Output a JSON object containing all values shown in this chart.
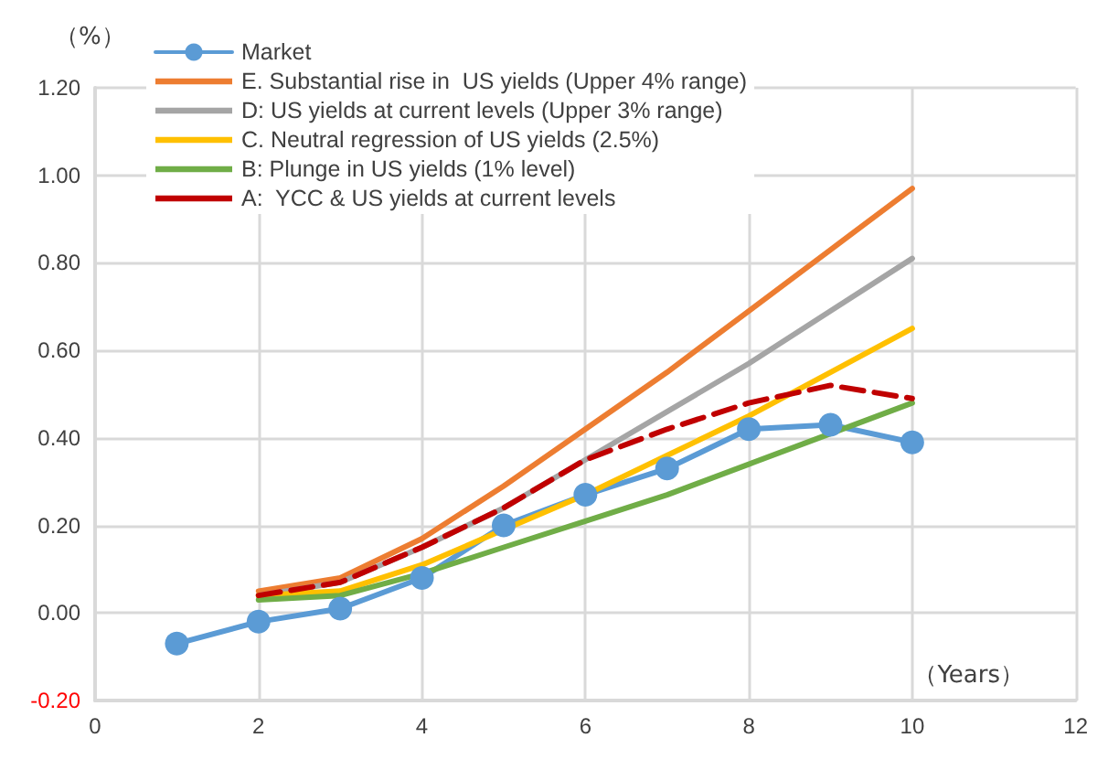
{
  "chart_data": {
    "type": "line",
    "ylabel": "（%）",
    "xlabel": "（Years）",
    "xlim": [
      0,
      12
    ],
    "xticks": [
      0,
      2,
      4,
      6,
      8,
      10,
      12
    ],
    "ylim": [
      -0.2,
      1.2
    ],
    "yticks": [
      {
        "value": -0.2,
        "label": "-0.20"
      },
      {
        "value": 0,
        "label": "0.00"
      },
      {
        "value": 0.2,
        "label": "0.20"
      },
      {
        "value": 0.4,
        "label": "0.40"
      },
      {
        "value": 0.6,
        "label": "0.60"
      },
      {
        "value": 0.8,
        "label": "0.80"
      },
      {
        "value": 1.0,
        "label": "1.00"
      },
      {
        "value": 1.2,
        "label": "1.20"
      }
    ],
    "grid": true,
    "legend": "top left",
    "series": [
      {
        "name": "Market",
        "color": "#5b9bd5",
        "marker": "circle",
        "x": [
          1,
          2,
          3,
          4,
          5,
          6,
          7,
          8,
          9,
          10
        ],
        "values": [
          -0.07,
          -0.02,
          0.01,
          0.08,
          0.2,
          0.27,
          0.33,
          0.42,
          0.43,
          0.39
        ]
      },
      {
        "name": "E. Substantial rise in  US yields (Upper 4% range)",
        "color": "#ed7d31",
        "x": [
          2,
          3,
          4,
          5,
          6,
          7,
          8,
          9,
          10
        ],
        "values": [
          0.05,
          0.08,
          0.17,
          0.29,
          0.42,
          0.55,
          0.69,
          0.83,
          0.97
        ]
      },
      {
        "name": "D: US yields at current levels (Upper 3% range)",
        "color": "#a5a5a5",
        "x": [
          2,
          3,
          4,
          5,
          6,
          7,
          8,
          9,
          10
        ],
        "values": [
          0.04,
          0.07,
          0.15,
          0.24,
          0.35,
          0.46,
          0.57,
          0.69,
          0.81
        ]
      },
      {
        "name": "C. Neutral regression of US yields (2.5%)",
        "color": "#ffc000",
        "x": [
          2,
          3,
          4,
          5,
          6,
          7,
          8,
          9,
          10
        ],
        "values": [
          0.04,
          0.05,
          0.11,
          0.19,
          0.27,
          0.36,
          0.45,
          0.55,
          0.65
        ]
      },
      {
        "name": "B: Plunge in US yields (1% level)",
        "color": "#70ad47",
        "x": [
          2,
          3,
          4,
          5,
          6,
          7,
          8,
          9,
          10
        ],
        "values": [
          0.03,
          0.04,
          0.09,
          0.15,
          0.21,
          0.27,
          0.34,
          0.41,
          0.48
        ]
      },
      {
        "name": "A:  YCC & US yields at current levels",
        "color": "#c00000",
        "line_style": "dashed",
        "x": [
          2,
          3,
          4,
          5,
          6,
          7,
          8,
          9,
          10
        ],
        "values": [
          0.04,
          0.07,
          0.15,
          0.24,
          0.35,
          0.42,
          0.48,
          0.52,
          0.49
        ]
      }
    ]
  }
}
